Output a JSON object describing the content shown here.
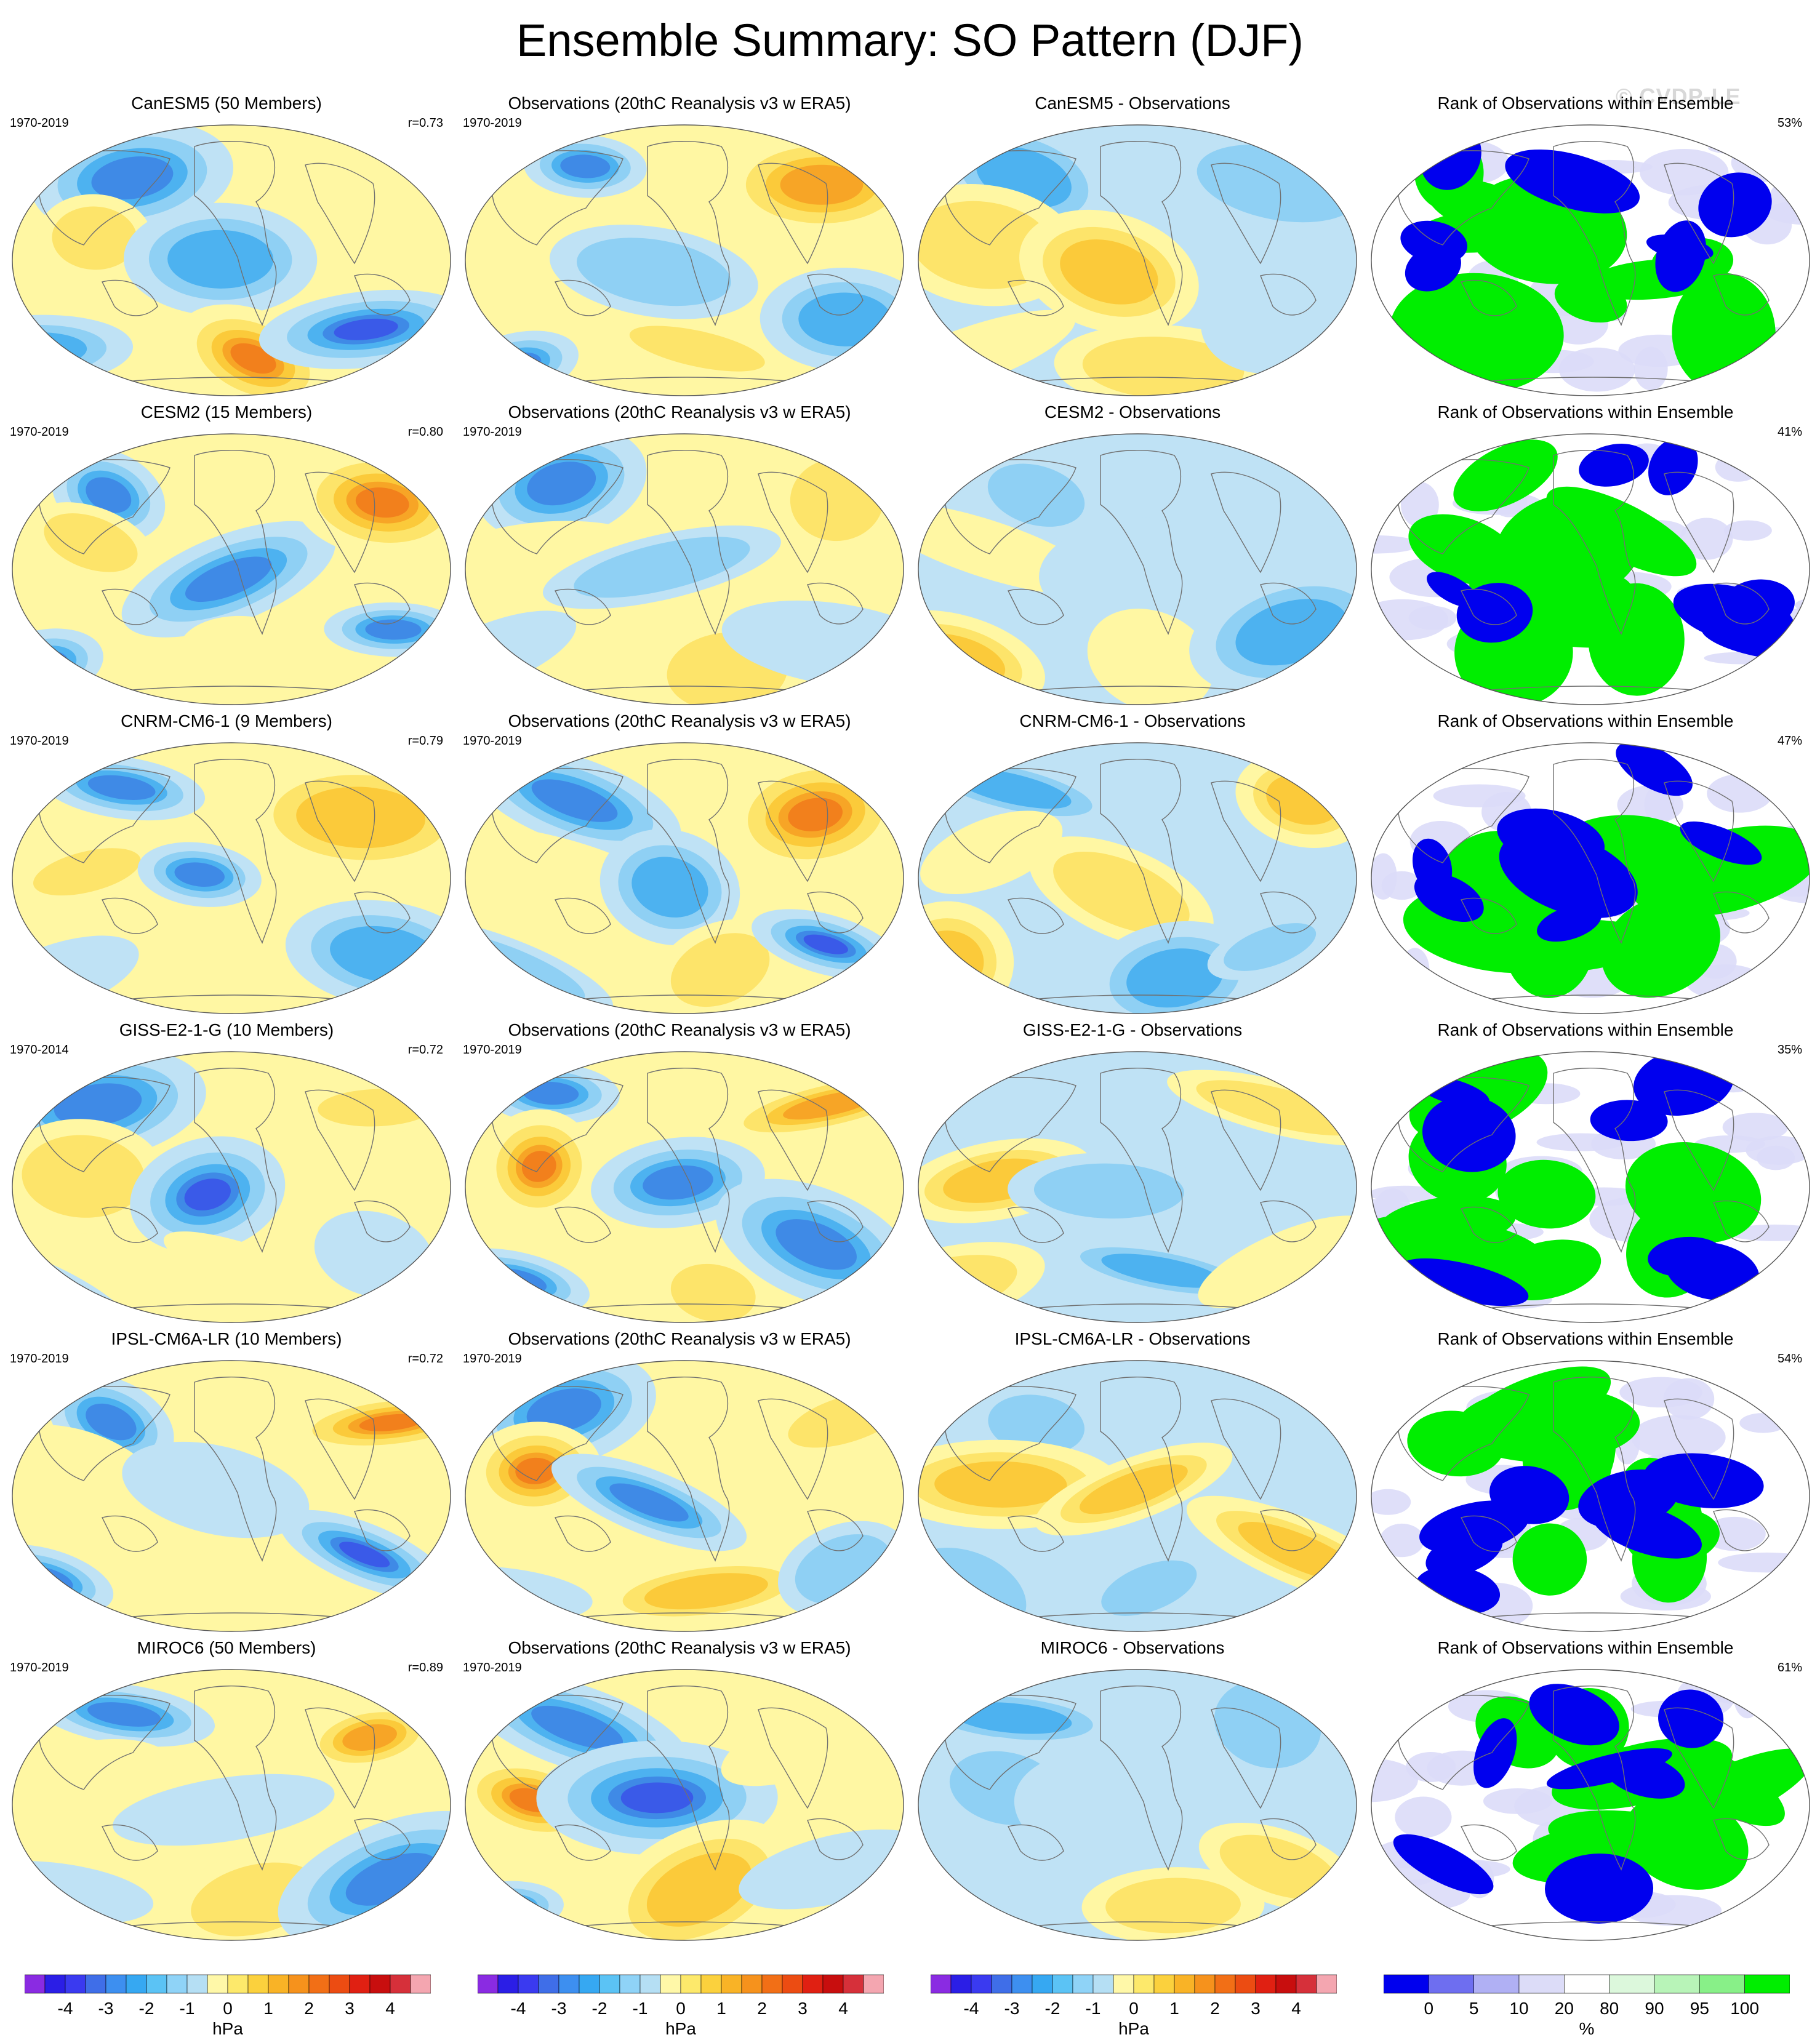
{
  "title": "Ensemble Summary: SO Pattern (DJF)",
  "watermark": "© CVDP-LE",
  "rows": [
    {
      "model": {
        "title": "CanESM5 (50 Members)",
        "period": "1970-2019",
        "r": "r=0.73"
      },
      "obs": {
        "title": "Observations (20thC Reanalysis v3 w ERA5)",
        "period": "1970-2019"
      },
      "diff": {
        "title": "CanESM5 - Observations"
      },
      "rank": {
        "title": "Rank of Observations within Ensemble",
        "pct": "53%"
      }
    },
    {
      "model": {
        "title": "CESM2 (15 Members)",
        "period": "1970-2019",
        "r": "r=0.80"
      },
      "obs": {
        "title": "Observations (20thC Reanalysis v3 w ERA5)",
        "period": "1970-2019"
      },
      "diff": {
        "title": "CESM2 - Observations"
      },
      "rank": {
        "title": "Rank of Observations within Ensemble",
        "pct": "41%"
      }
    },
    {
      "model": {
        "title": "CNRM-CM6-1 (9 Members)",
        "period": "1970-2019",
        "r": "r=0.79"
      },
      "obs": {
        "title": "Observations (20thC Reanalysis v3 w ERA5)",
        "period": "1970-2019"
      },
      "diff": {
        "title": "CNRM-CM6-1 - Observations"
      },
      "rank": {
        "title": "Rank of Observations within Ensemble",
        "pct": "47%"
      }
    },
    {
      "model": {
        "title": "GISS-E2-1-G (10 Members)",
        "period": "1970-2014",
        "r": "r=0.72"
      },
      "obs": {
        "title": "Observations (20thC Reanalysis v3 w ERA5)",
        "period": "1970-2019"
      },
      "diff": {
        "title": "GISS-E2-1-G - Observations"
      },
      "rank": {
        "title": "Rank of Observations within Ensemble",
        "pct": "35%"
      }
    },
    {
      "model": {
        "title": "IPSL-CM6A-LR (10 Members)",
        "period": "1970-2019",
        "r": "r=0.72"
      },
      "obs": {
        "title": "Observations (20thC Reanalysis v3 w ERA5)",
        "period": "1970-2019"
      },
      "diff": {
        "title": "IPSL-CM6A-LR - Observations"
      },
      "rank": {
        "title": "Rank of Observations within Ensemble",
        "pct": "54%"
      }
    },
    {
      "model": {
        "title": "MIROC6 (50 Members)",
        "period": "1970-2019",
        "r": "r=0.89"
      },
      "obs": {
        "title": "Observations (20thC Reanalysis v3 w ERA5)",
        "period": "1970-2019"
      },
      "diff": {
        "title": "MIROC6 - Observations"
      },
      "rank": {
        "title": "Rank of Observations within Ensemble",
        "pct": "61%"
      }
    }
  ],
  "colorbars": {
    "hpa": {
      "unit": "hPa",
      "ticks": [
        "-4",
        "-3",
        "-2",
        "-1",
        "0",
        "1",
        "2",
        "3",
        "4"
      ],
      "colors": [
        "#8a2be2",
        "#2b1ee6",
        "#3a3af0",
        "#3f6ee8",
        "#3d8ff0",
        "#36a8f2",
        "#5bc3f5",
        "#8fd3f7",
        "#b5dff4",
        "#fff8a8",
        "#fde96b",
        "#fbd13d",
        "#f9b326",
        "#f6921c",
        "#f26f16",
        "#ec4c12",
        "#e02012",
        "#c80e0e",
        "#d6303a",
        "#f4a6b0"
      ]
    },
    "pct": {
      "unit": "%",
      "ticks": [
        "0",
        "5",
        "10",
        "20",
        "80",
        "90",
        "95",
        "100"
      ],
      "colors": [
        "#0000ee",
        "#6e6ef0",
        "#b0b0f4",
        "#dcdcf8",
        "#ffffff",
        "#dcf8dc",
        "#b8f4b8",
        "#88f088",
        "#00ee00"
      ]
    }
  },
  "palette": {
    "land_outline": "#707070",
    "positive": [
      "#fff7a3",
      "#fde46a",
      "#fbca3a",
      "#f7a526",
      "#f2801c",
      "#e85a14"
    ],
    "negative": [
      "#bfe2f5",
      "#8fd0f4",
      "#4db2f0",
      "#3f8ae6",
      "#3a5ae8",
      "#2a24d8"
    ],
    "rank_low": "#0000ee",
    "rank_high": "#00ee00",
    "rank_mid": "#dcdcf8"
  }
}
